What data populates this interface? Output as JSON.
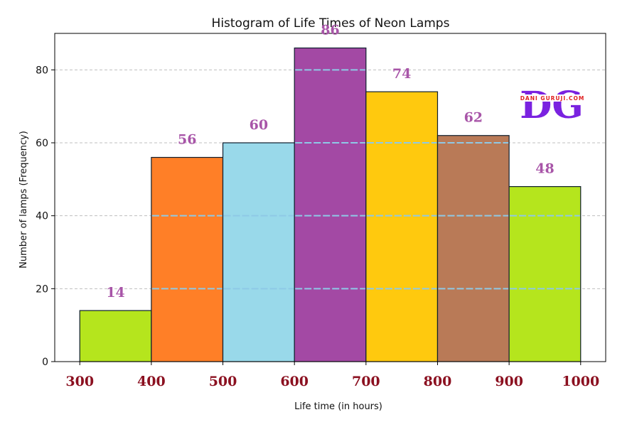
{
  "chart_data": {
    "type": "bar",
    "title": "Histogram of Life Times of Neon Lamps",
    "xlabel": "Life time (in hours)",
    "ylabel": "Number of lamps (Frequency)",
    "bins": [
      [
        300,
        400
      ],
      [
        400,
        500
      ],
      [
        500,
        600
      ],
      [
        600,
        700
      ],
      [
        700,
        800
      ],
      [
        800,
        900
      ],
      [
        900,
        1000
      ]
    ],
    "values": [
      14,
      56,
      60,
      86,
      74,
      62,
      48
    ],
    "bar_colors": [
      "#b5e51d",
      "#ff7f27",
      "#99d9ea",
      "#a349a4",
      "#ffc90e",
      "#b97a57",
      "#b5e51d"
    ],
    "xticks": [
      "300",
      "400",
      "500",
      "600",
      "700",
      "800",
      "900",
      "1000"
    ],
    "yticks": [
      "0",
      "20",
      "40",
      "60",
      "80"
    ],
    "xlim": [
      265,
      1035
    ],
    "ylim": [
      0,
      90
    ],
    "grid": true
  },
  "logo": {
    "text": "DG",
    "subtext": "DANI GURUJI.COM",
    "color": "#7a22e0",
    "subcolor": "#e02020"
  }
}
